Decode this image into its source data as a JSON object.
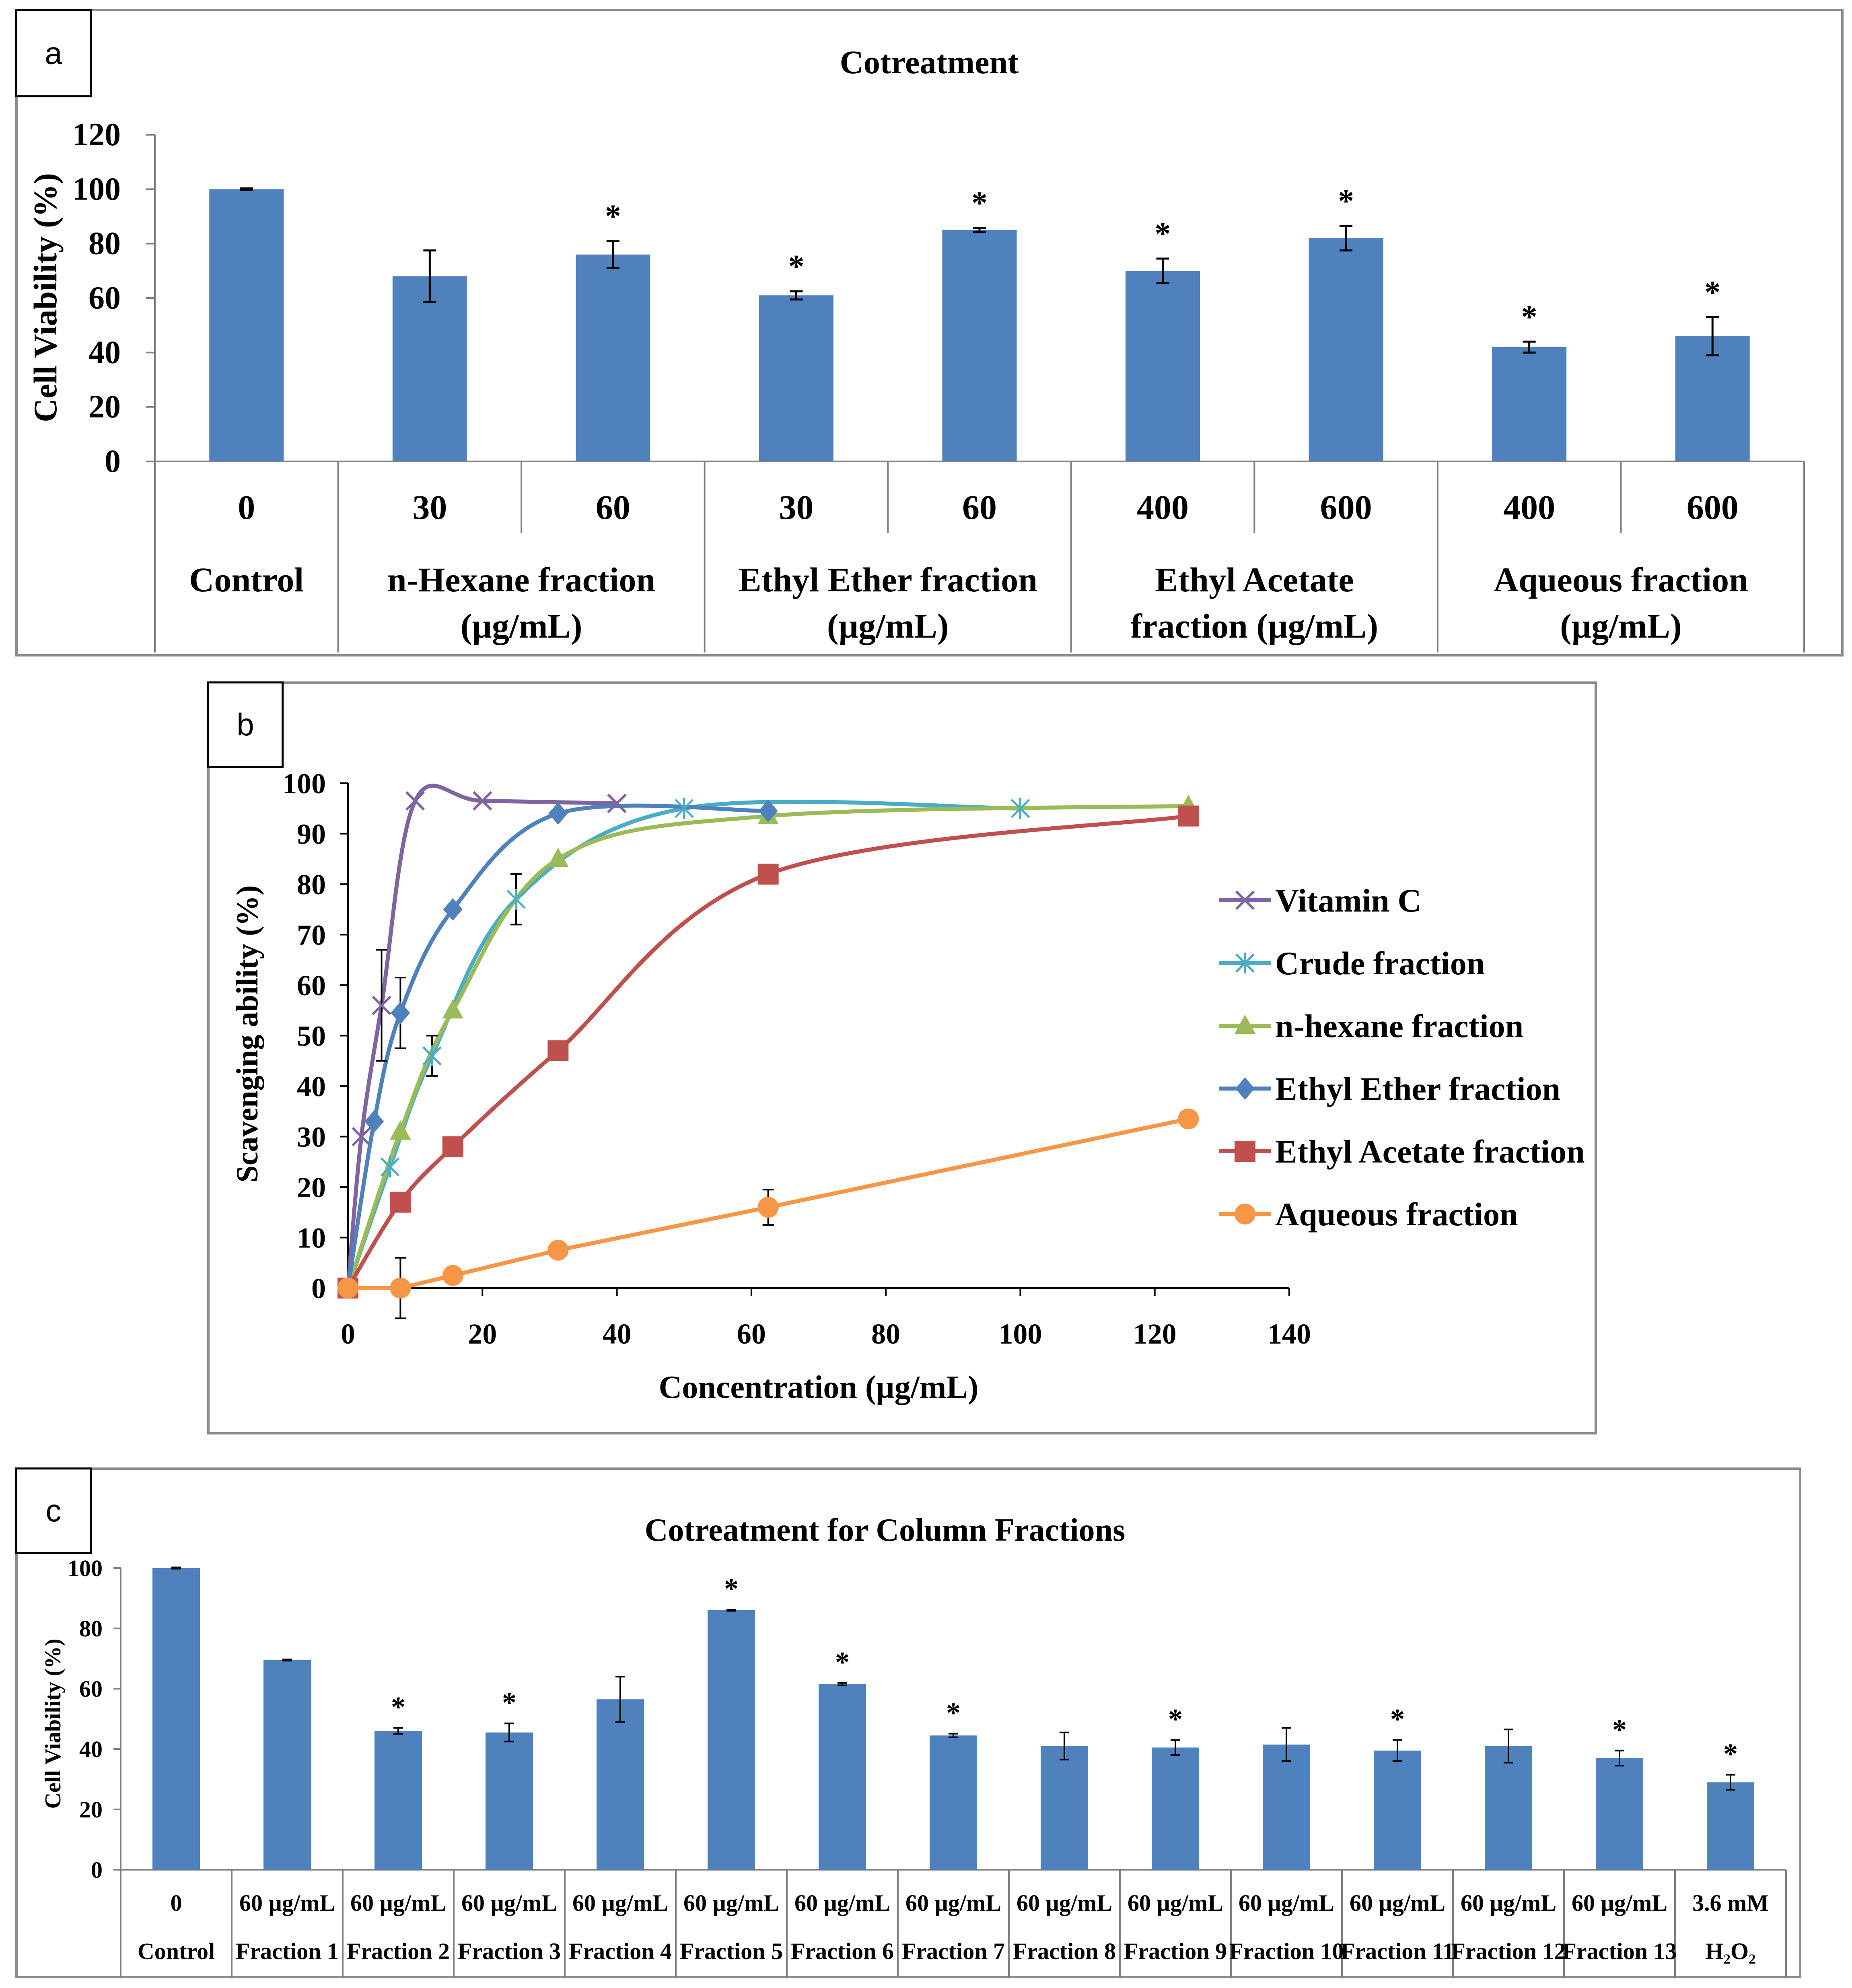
{
  "chart_data": [
    {
      "panel": "a",
      "type": "bar",
      "title": "Cotreatment",
      "ylabel": "Cell Viability (%)",
      "xlabel": "",
      "ylim": [
        0,
        120
      ],
      "yticks": [
        0,
        20,
        40,
        60,
        80,
        100,
        120
      ],
      "color": "#4f81bd",
      "categories": [
        "0",
        "30",
        "60",
        "30",
        "60",
        "400",
        "600",
        "400",
        "600"
      ],
      "values": [
        100,
        68,
        76,
        61,
        85,
        70,
        82,
        42,
        46
      ],
      "errors": [
        0.3,
        9.5,
        5,
        1.5,
        0.8,
        4.5,
        4.5,
        2,
        7
      ],
      "significance": [
        "",
        "",
        "*",
        "*",
        "*",
        "*",
        "*",
        "*",
        "*"
      ],
      "groups": [
        {
          "label": "Control",
          "span": 1
        },
        {
          "label": "n-Hexane fraction\n(µg/mL)",
          "span": 2
        },
        {
          "label": "Ethyl Ether fraction\n(µg/mL)",
          "span": 2
        },
        {
          "label": "Ethyl Acetate\nfraction (µg/mL)",
          "span": 2
        },
        {
          "label": "Aqueous fraction\n(µg/mL)",
          "span": 2
        }
      ]
    },
    {
      "panel": "b",
      "type": "line",
      "title": "",
      "xlabel": "Concentration (µg/mL)",
      "ylabel": "Scavenging ability (%)",
      "xlim": [
        0,
        140
      ],
      "ylim": [
        0,
        100
      ],
      "xticks": [
        0,
        20,
        40,
        60,
        80,
        100,
        120,
        140
      ],
      "yticks": [
        0,
        10,
        20,
        30,
        40,
        50,
        60,
        70,
        80,
        90,
        100
      ],
      "legend_position": "right",
      "series": [
        {
          "name": "Vitamin C",
          "color": "#8064a2",
          "marker": "x",
          "x": [
            0,
            2,
            5,
            10,
            20,
            40
          ],
          "y": [
            0,
            30,
            56,
            96.5,
            96.5,
            96
          ],
          "err": [
            0,
            0,
            11,
            0,
            0,
            0
          ]
        },
        {
          "name": "Crude fraction",
          "color": "#4bacc6",
          "marker": "star",
          "x": [
            0,
            6.25,
            12.5,
            25,
            50,
            100
          ],
          "y": [
            0,
            24,
            46,
            77,
            95,
            95
          ],
          "err": [
            0,
            0,
            4,
            5,
            0,
            0
          ]
        },
        {
          "name": "n-hexane fraction",
          "color": "#9bbb59",
          "marker": "triangle",
          "x": [
            0,
            7.8,
            15.6,
            31.25,
            62.5,
            125
          ],
          "y": [
            0,
            31,
            55,
            85,
            93.5,
            95.5
          ],
          "err": [
            0,
            0,
            0,
            0,
            0,
            0
          ]
        },
        {
          "name": "Ethyl Ether fraction",
          "color": "#4f81bd",
          "marker": "diamond",
          "x": [
            0,
            3.9,
            7.8,
            15.6,
            31.25,
            62.5
          ],
          "y": [
            0,
            33,
            54.5,
            75,
            94,
            94.5
          ],
          "err": [
            0,
            0,
            7,
            0,
            0,
            0
          ]
        },
        {
          "name": "Ethyl Acetate fraction",
          "color": "#c0504d",
          "marker": "square",
          "x": [
            0,
            7.8,
            15.6,
            31.25,
            62.5,
            125
          ],
          "y": [
            0,
            17,
            28,
            47,
            82,
            93.5
          ],
          "err": [
            0,
            0,
            0,
            0,
            0,
            0
          ]
        },
        {
          "name": "Aqueous fraction",
          "color": "#f79646",
          "marker": "circle",
          "x": [
            0,
            7.8,
            15.6,
            31.25,
            62.5,
            125
          ],
          "y": [
            0,
            0,
            2.5,
            7.5,
            16,
            33.5
          ],
          "err": [
            0,
            6,
            0,
            0,
            3.5,
            0
          ]
        }
      ]
    },
    {
      "panel": "c",
      "type": "bar",
      "title": "Cotreatment for Column Fractions",
      "ylabel": "Cell Viability (%)",
      "xlabel": "",
      "ylim": [
        0,
        100
      ],
      "yticks": [
        0,
        20,
        40,
        60,
        80,
        100
      ],
      "color": "#4f81bd",
      "categories": [
        "0",
        "60 µg/mL",
        "60 µg/mL",
        "60 µg/mL",
        "60 µg/mL",
        "60 µg/mL",
        "60 µg/mL",
        "60 µg/mL",
        "60 µg/mL",
        "60 µg/mL",
        "60 µg/mL",
        "60 µg/mL",
        "60 µg/mL",
        "60 µg/mL",
        "3.6 mM"
      ],
      "group_labels": [
        "Control",
        "Fraction 1",
        "Fraction 2",
        "Fraction 3",
        "Fraction 4",
        "Fraction 5",
        "Fraction 6",
        "Fraction 7",
        "Fraction 8",
        "Fraction 9",
        "Fraction 10",
        "Fraction 11",
        "Fraction 12",
        "Fraction 13",
        "H₂O₂"
      ],
      "values": [
        100,
        69.5,
        46,
        45.5,
        56.5,
        86,
        61.5,
        44.5,
        41,
        40.5,
        41.5,
        39.5,
        41,
        37,
        29
      ],
      "errors": [
        0.2,
        0.2,
        1,
        3,
        7.5,
        0.2,
        0.4,
        0.6,
        4.5,
        2.5,
        5.5,
        3.5,
        5.5,
        2.5,
        2.5
      ],
      "significance": [
        "",
        "",
        "*",
        "*",
        "",
        "*",
        "*",
        "*",
        "",
        "*",
        "",
        "*",
        "",
        "*",
        "*"
      ]
    }
  ],
  "panel_letters": {
    "a": "a",
    "b": "b",
    "c": "c"
  }
}
